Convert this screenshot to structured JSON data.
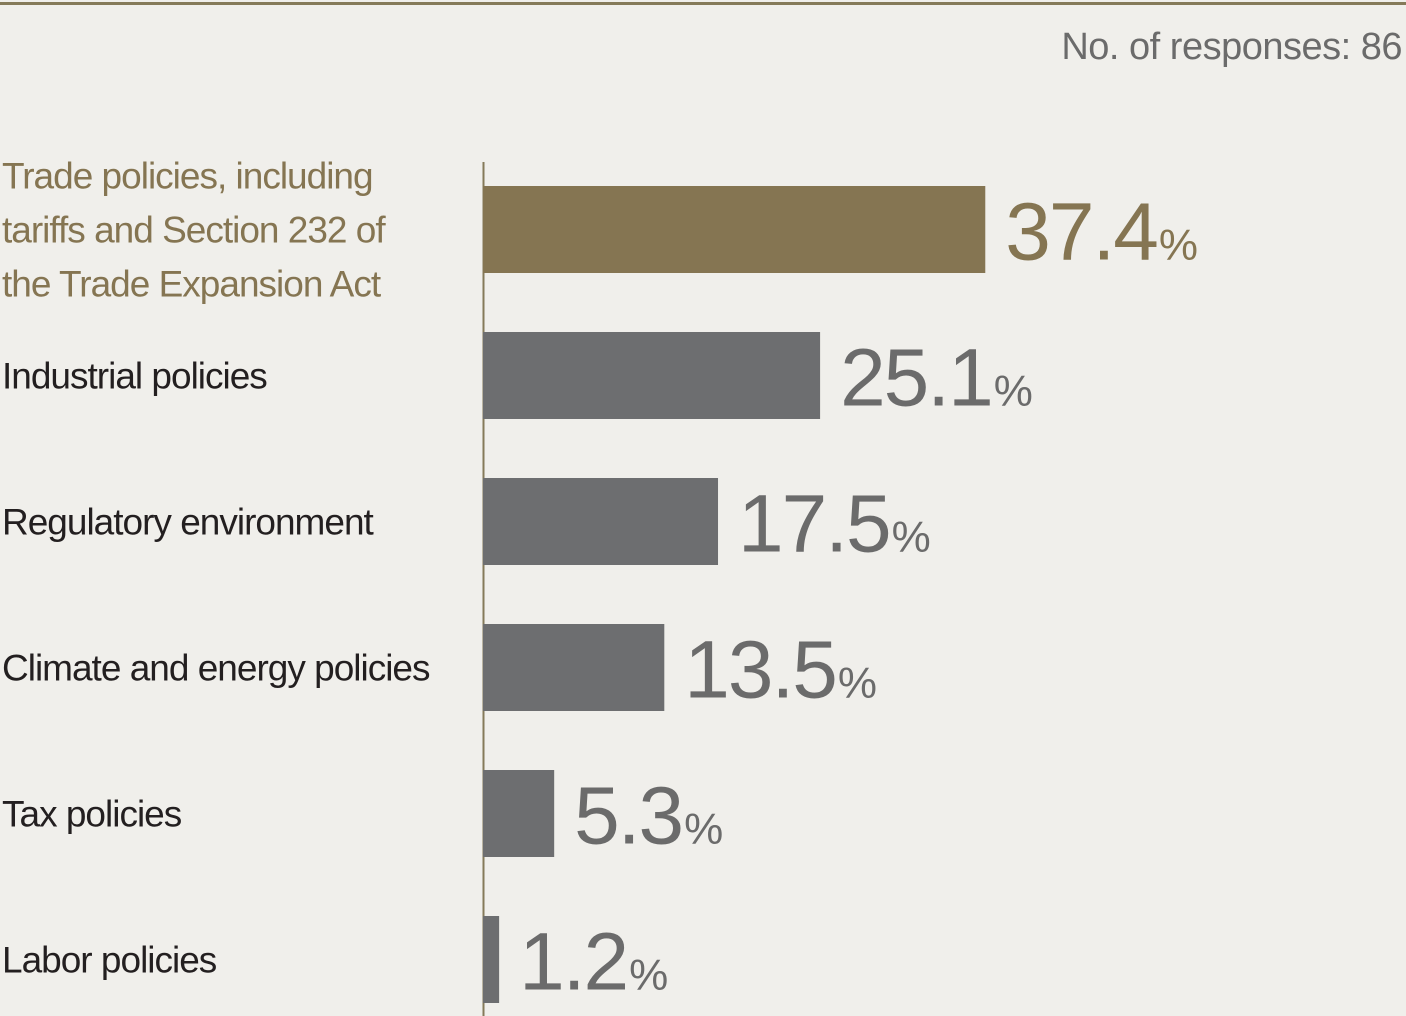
{
  "header": {
    "responses_text": "No. of responses: 86"
  },
  "colors": {
    "highlight": "#857552",
    "bar": "#6d6e70",
    "label": "#231f20",
    "value": "#6b6b6b",
    "axis": "#857a59",
    "background": "#f0efeb"
  },
  "chart_data": {
    "type": "bar",
    "orientation": "horizontal",
    "categories": [
      [
        "Trade policies, including",
        "tariffs and Section 232 of",
        "the Trade Expansion Act"
      ],
      [
        "Industrial policies"
      ],
      [
        "Regulatory environment"
      ],
      [
        "Climate and energy policies"
      ],
      [
        "Tax policies"
      ],
      [
        "Labor policies"
      ]
    ],
    "values": [
      37.4,
      25.1,
      17.5,
      13.5,
      5.3,
      1.2
    ],
    "value_labels": [
      "37.4",
      "25.1",
      "17.5",
      "13.5",
      "5.3",
      "1.2"
    ],
    "unit": "%",
    "highlight_index": 0,
    "title": "",
    "xlabel": "",
    "ylabel": "",
    "grid": false,
    "legend": "none"
  }
}
